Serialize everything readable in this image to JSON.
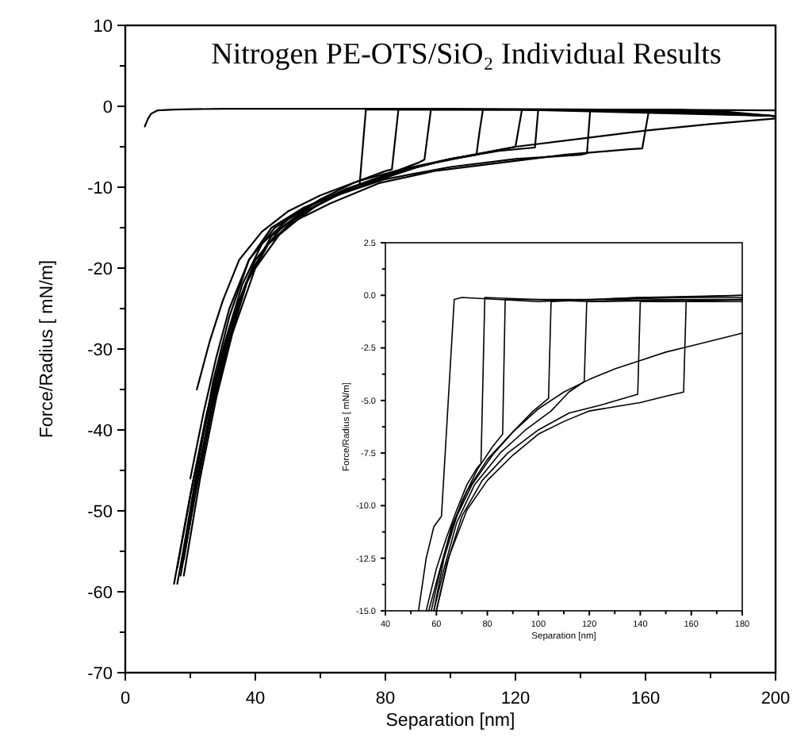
{
  "chart_data": [
    {
      "type": "line",
      "title": "Nitrogen PE-OTS/SiO₂ Individual Results",
      "xlabel": "Separation [nm]",
      "ylabel": "Force/Radius [ mN/m]",
      "xlim": [
        0,
        200
      ],
      "ylim": [
        -70,
        10
      ],
      "xticks": [
        0,
        {
          "value": 20,
          "label": null
        },
        40,
        {
          "value": 60,
          "label": null
        },
        80,
        {
          "value": 100,
          "label": null
        },
        120,
        {
          "value": 140,
          "label": null
        },
        160,
        {
          "value": 180,
          "label": null
        },
        200
      ],
      "yticks": [
        -70,
        {
          "value": -65,
          "label": null
        },
        -60,
        {
          "value": -55,
          "label": null
        },
        -50,
        {
          "value": -45,
          "label": null
        },
        -40,
        {
          "value": -35,
          "label": null
        },
        -30,
        {
          "value": -25,
          "label": null
        },
        -20,
        {
          "value": -15,
          "label": null
        },
        -10,
        {
          "value": -5,
          "label": null
        },
        0,
        {
          "value": 5,
          "label": null
        },
        10
      ],
      "series": [
        {
          "color": "#000000",
          "x": [
            6,
            7,
            8,
            10,
            15,
            30,
            60,
            100,
            150,
            200
          ],
          "values": [
            -2.5,
            -1.5,
            -0.9,
            -0.5,
            -0.4,
            -0.3,
            -0.3,
            -0.3,
            -0.4,
            -0.5
          ]
        },
        {
          "color": "#000000",
          "x": [
            17,
            22,
            27,
            32,
            38,
            45,
            55,
            65,
            72,
            74,
            80,
            120,
            160,
            200
          ],
          "values": [
            -57,
            -45,
            -34,
            -26,
            -19,
            -15,
            -12.5,
            -10.8,
            -10,
            -0.4,
            -0.4,
            -0.4,
            -0.5,
            -1.2
          ]
        },
        {
          "color": "#000000",
          "x": [
            15,
            20,
            25,
            30,
            36,
            42,
            50,
            60,
            70,
            80,
            82,
            84,
            120,
            200
          ],
          "values": [
            -59,
            -48,
            -38,
            -30,
            -22,
            -17,
            -14,
            -11.5,
            -9.5,
            -8,
            -7.8,
            -0.4,
            -0.4,
            -1.2
          ]
        },
        {
          "color": "#000000",
          "x": [
            18,
            23,
            28,
            33,
            40,
            48,
            58,
            70,
            80,
            90,
            92,
            94,
            140,
            200
          ],
          "values": [
            -58,
            -46,
            -36,
            -28,
            -20,
            -15.5,
            -12.5,
            -10,
            -8.5,
            -7,
            -6.6,
            -0.4,
            -0.4,
            -1.2
          ]
        },
        {
          "color": "#000000",
          "x": [
            16,
            21,
            26,
            31,
            37,
            44,
            52,
            62,
            75,
            90,
            100,
            108,
            109,
            110,
            160,
            200
          ],
          "values": [
            -57,
            -46,
            -37,
            -29,
            -22,
            -17,
            -14,
            -11.5,
            -9.5,
            -7.5,
            -6.5,
            -6,
            -3,
            -0.4,
            -0.4,
            -1.2
          ]
        },
        {
          "color": "#000000",
          "x": [
            20,
            24,
            28,
            32,
            38,
            46,
            56,
            68,
            80,
            95,
            110,
            120,
            122,
            160,
            200
          ],
          "values": [
            -46,
            -38,
            -31,
            -25,
            -19,
            -15,
            -12.5,
            -10.2,
            -8.5,
            -7,
            -5.8,
            -5,
            -0.4,
            -0.4,
            -1.2
          ]
        },
        {
          "color": "#000000",
          "x": [
            22,
            26,
            30,
            35,
            42,
            50,
            60,
            72,
            85,
            100,
            115,
            126,
            127,
            170,
            200
          ],
          "values": [
            -35,
            -29,
            -24,
            -19,
            -15.5,
            -13,
            -11,
            -9.2,
            -7.8,
            -6.5,
            -5.5,
            -5.1,
            -0.4,
            -0.4,
            -1.2
          ]
        },
        {
          "color": "#000000",
          "x": [
            17,
            22,
            27,
            32,
            38,
            45,
            55,
            65,
            80,
            100,
            120,
            140,
            142,
            143,
            180,
            200
          ],
          "values": [
            -58,
            -47,
            -37,
            -29,
            -21,
            -16,
            -13,
            -11,
            -9,
            -7.5,
            -6.5,
            -6,
            -5.8,
            -0.4,
            -0.5,
            -1.2
          ]
        },
        {
          "color": "#000000",
          "x": [
            16,
            21,
            26,
            31,
            37,
            44,
            53,
            63,
            78,
            95,
            115,
            135,
            155,
            159,
            161,
            200
          ],
          "values": [
            -59,
            -48,
            -38,
            -30,
            -22,
            -17,
            -14,
            -12,
            -9.5,
            -8,
            -7,
            -6,
            -5.3,
            -5.2,
            -0.6,
            -1.2
          ]
        },
        {
          "color": "#000000",
          "x": [
            18,
            23,
            28,
            34,
            40,
            48,
            58,
            70,
            85,
            100,
            120,
            140,
            160,
            180,
            200
          ],
          "values": [
            -56,
            -44,
            -34,
            -25,
            -19,
            -15,
            -12,
            -10,
            -8,
            -6.5,
            -5,
            -4,
            -3,
            -2.2,
            -1.5
          ]
        }
      ]
    },
    {
      "type": "line",
      "xlabel": "Separation [nm]",
      "ylabel": "Force/Radius [ mN/m]",
      "xlim": [
        40,
        180
      ],
      "ylim": [
        -15,
        2.5
      ],
      "xticks": [
        40,
        {
          "value": 50,
          "label": null
        },
        60,
        {
          "value": 70,
          "label": null
        },
        80,
        {
          "value": 90,
          "label": null
        },
        100,
        {
          "value": 110,
          "label": null
        },
        120,
        {
          "value": 130,
          "label": null
        },
        140,
        {
          "value": 150,
          "label": null
        },
        160,
        {
          "value": 170,
          "label": null
        },
        180
      ],
      "yticks": [
        {
          "value": -15,
          "label": "-15.0"
        },
        {
          "value": -13.75,
          "label": null
        },
        {
          "value": -12.5,
          "label": "-12.5"
        },
        {
          "value": -11.25,
          "label": null
        },
        {
          "value": -10,
          "label": "-10.0"
        },
        {
          "value": -8.75,
          "label": null
        },
        {
          "value": -7.5,
          "label": "-7.5"
        },
        {
          "value": -6.25,
          "label": null
        },
        {
          "value": -5,
          "label": "-5.0"
        },
        {
          "value": -3.75,
          "label": null
        },
        {
          "value": -2.5,
          "label": "-2.5"
        },
        {
          "value": -1.25,
          "label": null
        },
        {
          "value": 0,
          "label": "0.0"
        },
        {
          "value": 1.25,
          "label": null
        },
        {
          "value": 2.5,
          "label": "2.5"
        }
      ],
      "series": [
        {
          "color": "#000000",
          "x": [
            53,
            56,
            59,
            62,
            67,
            70,
            100,
            140,
            180
          ],
          "values": [
            -15,
            -12.5,
            -11,
            -10.5,
            -0.2,
            -0.1,
            -0.3,
            -0.1,
            0
          ]
        },
        {
          "color": "#000000",
          "x": [
            56,
            60,
            64,
            68,
            72,
            76,
            77.5,
            79,
            120,
            180
          ],
          "values": [
            -15,
            -13,
            -11.5,
            -10.2,
            -9,
            -8.2,
            -8,
            -0.1,
            -0.3,
            -0.2
          ]
        },
        {
          "color": "#000000",
          "x": [
            57,
            61,
            65,
            70,
            76,
            82,
            86,
            87,
            130,
            180
          ],
          "values": [
            -15,
            -13.2,
            -11.5,
            -9.8,
            -8.3,
            -7.2,
            -6.6,
            -0.2,
            -0.2,
            0
          ]
        },
        {
          "color": "#000000",
          "x": [
            58,
            62,
            66,
            72,
            80,
            90,
            98,
            104,
            105,
            140,
            180
          ],
          "values": [
            -15,
            -12.8,
            -11,
            -9.3,
            -7.8,
            -6.5,
            -5.5,
            -4.9,
            -0.3,
            -0.1,
            -0.1
          ]
        },
        {
          "color": "#000000",
          "x": [
            59,
            63,
            68,
            75,
            85,
            95,
            105,
            112,
            118,
            119,
            150,
            180
          ],
          "values": [
            -15,
            -13,
            -10.8,
            -9,
            -7.5,
            -6.4,
            -5.5,
            -4.6,
            -4.1,
            -0.3,
            -0.2,
            -0.2
          ]
        },
        {
          "color": "#000000",
          "x": [
            60,
            64,
            70,
            78,
            88,
            100,
            112,
            125,
            139,
            140,
            180
          ],
          "values": [
            -15,
            -12.8,
            -10.5,
            -8.8,
            -7.5,
            -6.4,
            -5.6,
            -5.2,
            -4.7,
            -0.3,
            -0.3
          ]
        },
        {
          "color": "#000000",
          "x": [
            60,
            65,
            72,
            80,
            90,
            100,
            110,
            120,
            130,
            140,
            150,
            157,
            158,
            180
          ],
          "values": [
            -15,
            -12.4,
            -10.2,
            -8.8,
            -7.6,
            -6.6,
            -6,
            -5.5,
            -5.3,
            -5.1,
            -4.8,
            -4.6,
            -0.3,
            -0.2
          ]
        },
        {
          "color": "#000000",
          "x": [
            59,
            63,
            68,
            74,
            82,
            90,
            100,
            110,
            120,
            130,
            140,
            150,
            160,
            170,
            180
          ],
          "values": [
            -15,
            -12.5,
            -10.5,
            -9,
            -7.6,
            -6.5,
            -5.4,
            -4.6,
            -4,
            -3.5,
            -3.1,
            -2.7,
            -2.4,
            -2.1,
            -1.8
          ]
        }
      ]
    }
  ]
}
